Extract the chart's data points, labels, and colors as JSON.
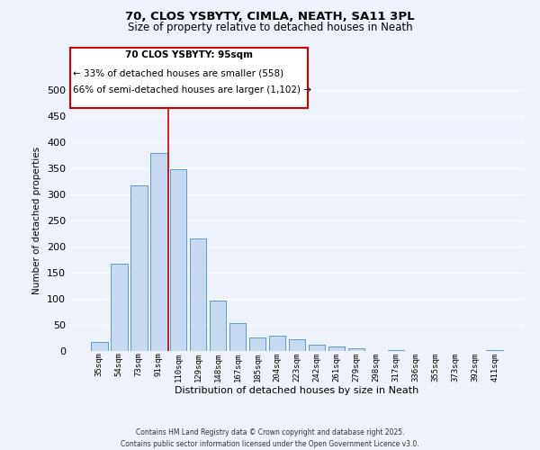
{
  "title1": "70, CLOS YSBYTY, CIMLA, NEATH, SA11 3PL",
  "title2": "Size of property relative to detached houses in Neath",
  "xlabel": "Distribution of detached houses by size in Neath",
  "ylabel": "Number of detached properties",
  "bar_labels": [
    "35sqm",
    "54sqm",
    "73sqm",
    "91sqm",
    "110sqm",
    "129sqm",
    "148sqm",
    "167sqm",
    "185sqm",
    "204sqm",
    "223sqm",
    "242sqm",
    "261sqm",
    "279sqm",
    "298sqm",
    "317sqm",
    "336sqm",
    "355sqm",
    "373sqm",
    "392sqm",
    "411sqm"
  ],
  "bar_values": [
    18,
    168,
    318,
    380,
    348,
    216,
    97,
    54,
    26,
    30,
    22,
    12,
    8,
    5,
    0,
    1,
    0,
    0,
    0,
    0,
    2
  ],
  "bar_color": "#c7d9f0",
  "bar_edge_color": "#5b9bd5",
  "ylim": [
    0,
    500
  ],
  "yticks": [
    0,
    50,
    100,
    150,
    200,
    250,
    300,
    350,
    400,
    450,
    500
  ],
  "vline_x": 3.5,
  "vline_color": "#cc0000",
  "annotation_title": "70 CLOS YSBYTY: 95sqm",
  "annotation_line1": "← 33% of detached houses are smaller (558)",
  "annotation_line2": "66% of semi-detached houses are larger (1,102) →",
  "annotation_box_color": "#cc0000",
  "footer1": "Contains HM Land Registry data © Crown copyright and database right 2025.",
  "footer2": "Contains public sector information licensed under the Open Government Licence v3.0.",
  "bg_color": "#eef2fa",
  "grid_color": "#ffffff"
}
